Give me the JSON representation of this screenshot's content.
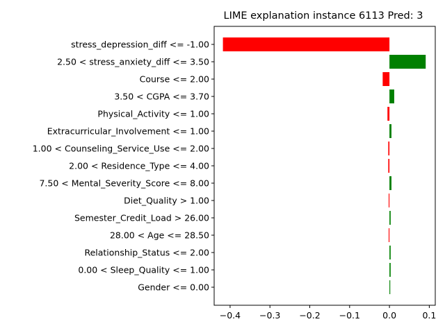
{
  "chart_data": {
    "type": "bar",
    "orientation": "horizontal",
    "title": "LIME explanation instance 6113 Pred: 3",
    "xlabel": "",
    "ylabel": "",
    "xlim": [
      -0.44,
      0.115
    ],
    "xticks": [
      {
        "value": -0.4,
        "label": "−0.4"
      },
      {
        "value": -0.3,
        "label": "−0.3"
      },
      {
        "value": -0.2,
        "label": "−0.2"
      },
      {
        "value": -0.1,
        "label": "−0.1"
      },
      {
        "value": 0.0,
        "label": "0.0"
      },
      {
        "value": 0.1,
        "label": "0.1"
      }
    ],
    "grid": false,
    "colors": {
      "positive": "#008000",
      "negative": "#ff0000"
    },
    "categories": [
      "stress_depression_diff <= -1.00",
      "2.50 < stress_anxiety_diff <= 3.50",
      "Course <= 2.00",
      "3.50 < CGPA <= 3.70",
      "Physical_Activity <= 1.00",
      "Extracurricular_Involvement <= 1.00",
      "1.00 < Counseling_Service_Use <= 2.00",
      "2.00 < Residence_Type <= 4.00",
      "7.50 < Mental_Severity_Score <= 8.00",
      "Diet_Quality > 1.00",
      "Semester_Credit_Load > 26.00",
      "28.00 < Age <= 28.50",
      "Relationship_Status <= 2.00",
      "0.00 < Sleep_Quality <= 1.00",
      "Gender <= 0.00"
    ],
    "values": [
      -0.418,
      0.091,
      -0.017,
      0.012,
      -0.005,
      0.005,
      -0.003,
      -0.003,
      0.005,
      -0.002,
      0.003,
      -0.002,
      0.003,
      0.003,
      0.002
    ]
  }
}
